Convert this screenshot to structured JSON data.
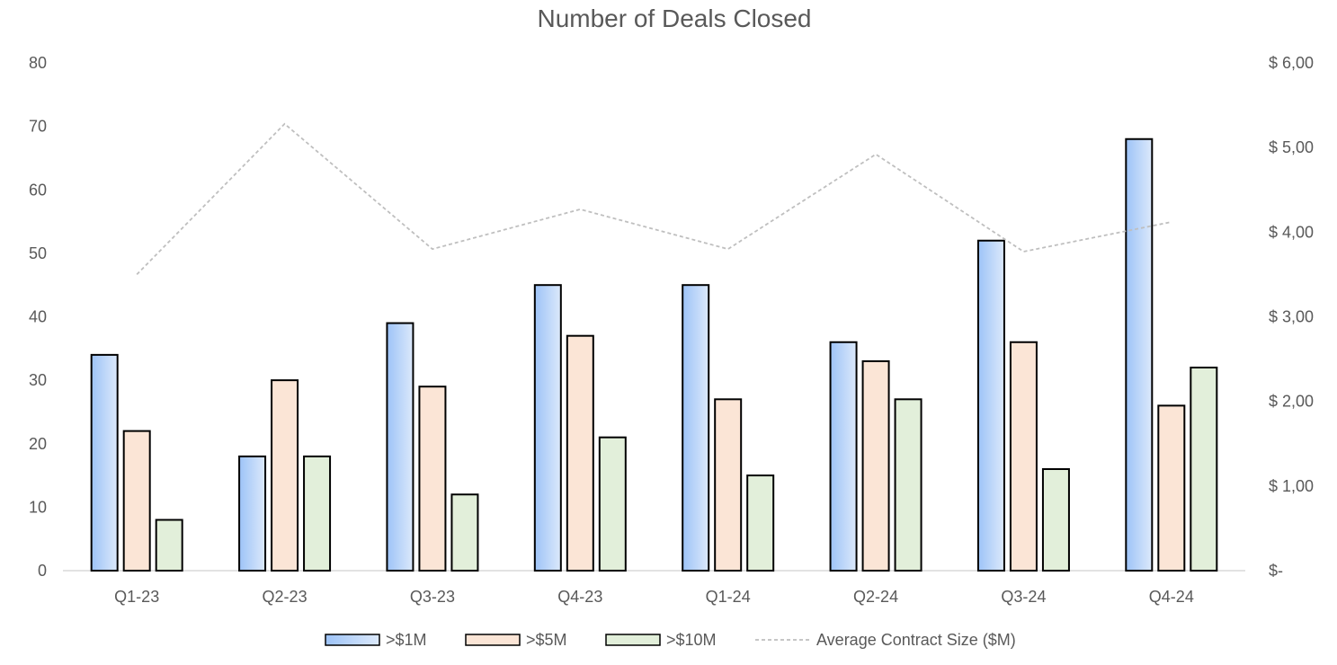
{
  "chart_data": {
    "type": "bar",
    "title": "Number of Deals Closed",
    "categories": [
      "Q1-23",
      "Q2-23",
      "Q3-23",
      "Q4-23",
      "Q1-24",
      "Q2-24",
      "Q3-24",
      "Q4-24"
    ],
    "series": [
      {
        "name": ">$1M",
        "type": "bar",
        "axis": "left",
        "values": [
          34,
          18,
          39,
          45,
          45,
          36,
          52,
          68
        ],
        "color": "#9DC3F7"
      },
      {
        "name": ">$5M",
        "type": "bar",
        "axis": "left",
        "values": [
          22,
          30,
          29,
          37,
          27,
          33,
          36,
          26
        ],
        "color": "#FBE5D6"
      },
      {
        "name": ">$10M",
        "type": "bar",
        "axis": "left",
        "values": [
          8,
          18,
          12,
          21,
          15,
          27,
          16,
          32
        ],
        "color": "#E2EFDA"
      },
      {
        "name": "Average Contract Size ($M)",
        "type": "line",
        "style": "dashed",
        "axis": "right",
        "values": [
          3.5,
          5.28,
          3.8,
          4.27,
          3.8,
          4.92,
          3.77,
          4.12
        ],
        "color": "#BFBFBF"
      }
    ],
    "y_left": {
      "ylim": [
        0,
        80
      ],
      "ticks": [
        0,
        10,
        20,
        30,
        40,
        50,
        60,
        70,
        80
      ],
      "tick_labels": [
        "0",
        "10",
        "20",
        "30",
        "40",
        "50",
        "60",
        "70",
        "80"
      ]
    },
    "y_right": {
      "ylim": [
        0,
        6
      ],
      "ticks": [
        0,
        1,
        2,
        3,
        4,
        5,
        6
      ],
      "tick_labels": [
        "$-",
        "$ 1,00",
        "$ 2,00",
        "$ 3,00",
        "$ 4,00",
        "$ 5,00",
        "$ 6,00"
      ]
    },
    "xlabel": "",
    "ylabel": "",
    "grid": false,
    "legend_position": "bottom"
  }
}
